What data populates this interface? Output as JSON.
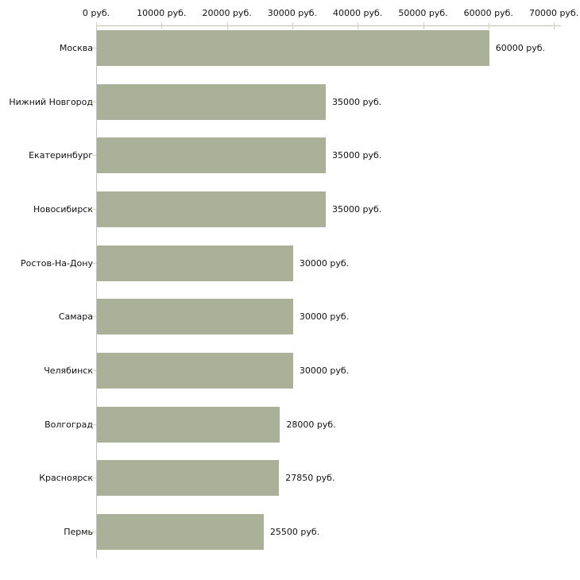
{
  "chart_data": {
    "type": "bar",
    "orientation": "horizontal",
    "title": "",
    "xlabel": "",
    "ylabel": "",
    "unit": "руб.",
    "xlim": [
      0,
      70000
    ],
    "grid": false,
    "legend": null,
    "categories": [
      "Москва",
      "Нижний Новгород",
      "Екатеринбург",
      "Новосибирск",
      "Ростов-На-Дону",
      "Самара",
      "Челябинск",
      "Волгоград",
      "Красноярск",
      "Пермь"
    ],
    "values": [
      60000,
      35000,
      35000,
      35000,
      30000,
      30000,
      30000,
      28000,
      27850,
      25500
    ],
    "value_labels": [
      "60000 руб.",
      "35000 руб.",
      "35000 руб.",
      "35000 руб.",
      "30000 руб.",
      "30000 руб.",
      "30000 руб.",
      "28000 руб.",
      "27850 руб.",
      "25500 руб."
    ],
    "x_ticks": [
      0,
      10000,
      20000,
      30000,
      40000,
      50000,
      60000,
      70000
    ],
    "x_tick_labels": [
      "0 руб.",
      "10000 руб.",
      "20000 руб.",
      "30000 руб.",
      "40000 руб.",
      "50000 руб.",
      "60000 руб.",
      "70000 руб."
    ],
    "colors": {
      "bar_fill": "#abb199",
      "x_axis_line": "#c2c0b5",
      "y_axis_line": "#c3c3c3",
      "tick_mark": "#d5d1b4",
      "text": "#111111",
      "background": "#ffffff"
    }
  }
}
